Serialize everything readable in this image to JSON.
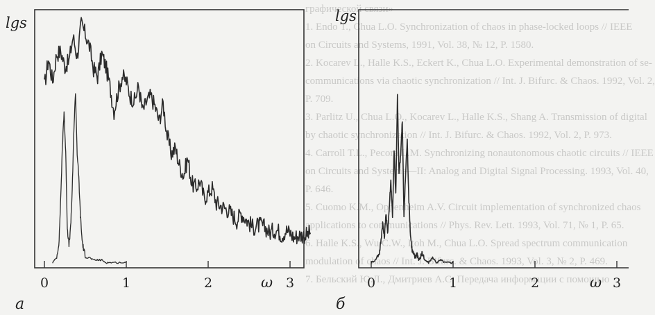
{
  "background_text": [
    "графической связи»",
    "1. Endo T., Chua L.O. Synchronization of chaos in phase-locked loops // IEEE",
    "on Circuits and Systems, 1991, Vol. 38, № 12, P. 1580.",
    "2. Kocarev L., Halle K.S., Eckert K., Chua L.O. Experimental demonstration of se-",
    "communications via chaotic synchronization // Int. J. Bifurc. & Chaos. 1992, Vol. 2,",
    "P. 709.",
    "3. Parlitz U., Chua L.O., Kocarev L., Halle K.S., Shang A. Transmission of digital",
    "by chaotic synchronization // Int. J. Bifurc. & Chaos. 1992, Vol. 2, P. 973.",
    "4. Carroll T.L., Pecora L.M. Synchronizing nonautonomous chaotic circuits // IEEE",
    "on Circuits and Systems—II: Analog and Digital Signal Processing. 1993, Vol. 40,",
    "P. 646.",
    "5. Cuomo K.M., Oppenheim A.V. Circuit implementation of synchronized chaos",
    "applications to communications // Phys. Rev. Lett. 1993, Vol. 71, № 1, P. 65.",
    "6. Halle K.S., Wu C.W., Itoh M., Chua L.O. Spread spectrum communication",
    "modulation of chaos // Int. J. Bifurc. & Chaos. 1993, Vol. 3, № 2, P. 469.",
    "7. Бельский Ю.Л., Дмитриев А.С. Передача информации с помощью"
  ],
  "chart_data": [
    {
      "type": "line",
      "panel_label": "а",
      "ylabel": "lgs",
      "xlabel": "ω",
      "xlim": [
        -0.1,
        3.3
      ],
      "ylim": [
        0,
        1
      ],
      "x_ticks": [
        "0",
        "1",
        "2",
        "3"
      ],
      "series": [
        {
          "x": [
            0.0,
            0.05,
            0.1,
            0.15,
            0.2,
            0.25,
            0.3,
            0.35,
            0.4,
            0.45,
            0.5,
            0.55,
            0.6,
            0.65,
            0.7,
            0.75,
            0.8,
            0.85,
            0.9,
            0.95,
            1.0,
            1.05,
            1.1,
            1.15,
            1.2,
            1.25,
            1.3,
            1.35,
            1.4,
            1.45,
            1.5,
            1.55,
            1.6,
            1.65,
            1.7,
            1.75,
            1.8,
            1.85,
            1.9,
            1.95,
            2.0,
            2.05,
            2.1,
            2.15,
            2.2,
            2.25,
            2.3,
            2.35,
            2.4,
            2.45,
            2.5,
            2.55,
            2.6,
            2.65,
            2.7,
            2.75,
            2.8,
            2.85,
            2.9,
            2.95,
            3.0,
            3.05,
            3.1,
            3.15,
            3.2,
            3.25
          ],
          "y": [
            0.72,
            0.83,
            0.74,
            0.85,
            0.86,
            0.8,
            0.82,
            0.92,
            0.84,
            0.97,
            0.93,
            0.88,
            0.79,
            0.76,
            0.85,
            0.8,
            0.72,
            0.62,
            0.7,
            0.76,
            0.74,
            0.68,
            0.66,
            0.72,
            0.62,
            0.66,
            0.68,
            0.64,
            0.58,
            0.65,
            0.52,
            0.45,
            0.47,
            0.4,
            0.36,
            0.43,
            0.33,
            0.31,
            0.34,
            0.27,
            0.29,
            0.31,
            0.25,
            0.24,
            0.23,
            0.22,
            0.2,
            0.18,
            0.21,
            0.19,
            0.17,
            0.15,
            0.16,
            0.16,
            0.15,
            0.13,
            0.14,
            0.14,
            0.12,
            0.14,
            0.13,
            0.11,
            0.12,
            0.12,
            0.12,
            0.13
          ]
        },
        {
          "x": [
            0.1,
            0.15,
            0.18,
            0.2,
            0.22,
            0.24,
            0.26,
            0.28,
            0.3,
            0.32,
            0.34,
            0.36,
            0.38,
            0.4,
            0.42,
            0.44,
            0.46,
            0.48,
            0.5,
            0.55,
            0.6,
            0.65,
            0.7,
            0.75,
            0.8,
            0.9,
            1.0
          ],
          "y": [
            0.01,
            0.03,
            0.1,
            0.28,
            0.48,
            0.62,
            0.45,
            0.15,
            0.08,
            0.15,
            0.3,
            0.55,
            0.7,
            0.45,
            0.35,
            0.2,
            0.1,
            0.06,
            0.04,
            0.03,
            0.02,
            0.02,
            0.02,
            0.01,
            0.01,
            0.01,
            0.01
          ]
        }
      ]
    },
    {
      "type": "line",
      "panel_label": "б",
      "ylabel": "lgs",
      "xlabel": "ω",
      "xlim": [
        -0.1,
        3.3
      ],
      "ylim": [
        0,
        1
      ],
      "x_ticks": [
        "0",
        "1",
        "2",
        "3"
      ],
      "series": [
        {
          "x": [
            0.0,
            0.05,
            0.1,
            0.12,
            0.14,
            0.16,
            0.18,
            0.2,
            0.22,
            0.24,
            0.26,
            0.28,
            0.3,
            0.32,
            0.34,
            0.36,
            0.38,
            0.4,
            0.42,
            0.44,
            0.46,
            0.48,
            0.5,
            0.52,
            0.54,
            0.56,
            0.58,
            0.6,
            0.62,
            0.65,
            0.7,
            0.75,
            0.8,
            0.85,
            0.9,
            0.95,
            1.0
          ],
          "y": [
            0.01,
            0.02,
            0.05,
            0.1,
            0.17,
            0.11,
            0.21,
            0.13,
            0.23,
            0.34,
            0.2,
            0.46,
            0.28,
            0.68,
            0.37,
            0.45,
            0.58,
            0.2,
            0.37,
            0.5,
            0.26,
            0.12,
            0.06,
            0.04,
            0.03,
            0.05,
            0.02,
            0.03,
            0.05,
            0.02,
            0.01,
            0.03,
            0.01,
            0.02,
            0.01,
            0.01,
            0.01
          ]
        }
      ]
    }
  ]
}
